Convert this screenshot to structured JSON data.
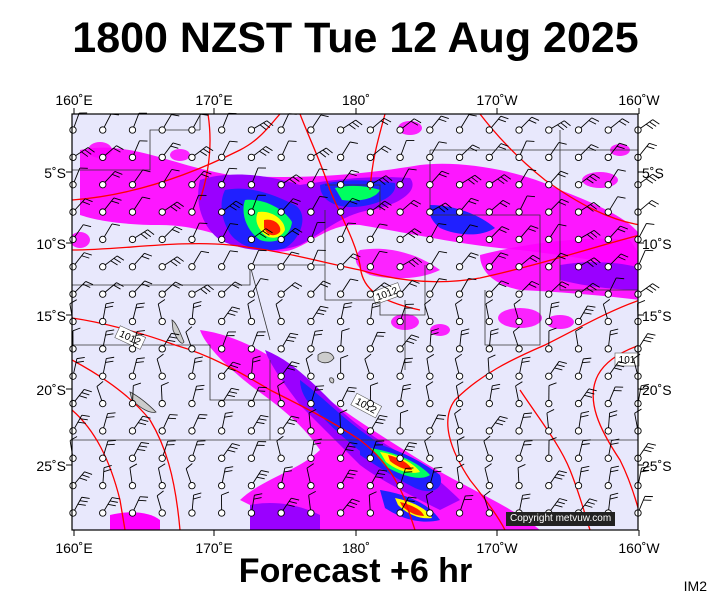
{
  "title": "1800 NZST Tue 12 Aug 2025",
  "subtitle": "Forecast +6 hr",
  "map_id": "IM2",
  "copyright": "Copyright metvuw.com",
  "lon_labels": [
    "160˚E",
    "170˚E",
    "180˚",
    "170˚W",
    "160˚W"
  ],
  "lat_labels": [
    "5˚S",
    "10˚S",
    "15˚S",
    "20˚S",
    "25˚S"
  ],
  "isobar_labels": [
    "1012",
    "1012",
    "1012",
    "101"
  ],
  "colors": {
    "background": "#e8e8fc",
    "isobar": "#ff0000",
    "magenta": "#ff00ff",
    "purple": "#9a00ff",
    "blue": "#2020ff",
    "green": "#00ff60",
    "yellow": "#ffff00",
    "red_rain": "#ff2000"
  }
}
